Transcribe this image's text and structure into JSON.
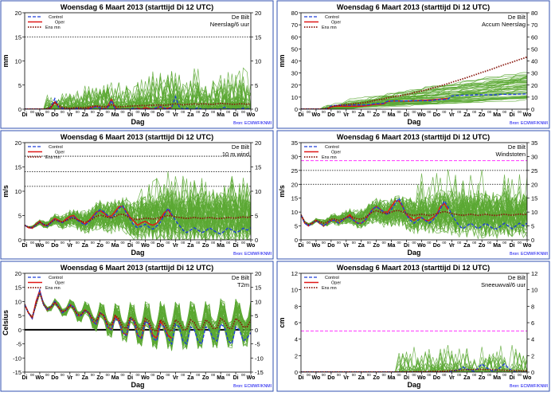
{
  "panels": [
    {
      "id": "precip6h",
      "header": "Woensdag  6 Maart   2013  (starttijd  Di 12 UTC)",
      "location": "De Bilt",
      "subtitle": "Neerslag/6 uur",
      "ylabel": "mm",
      "xlabel": "Dag",
      "ylim": [
        0,
        20
      ],
      "yticks": [
        0,
        5,
        10,
        15,
        20
      ],
      "dotted_lines": [
        15
      ],
      "magenta_lines": [],
      "zero_line": false,
      "legend": [
        "Control",
        "Oper",
        "Ens mn"
      ],
      "source": "Bron: ECMWF/KNMI",
      "day_labels": [
        "Di",
        "Wo",
        "Do",
        "Vr",
        "Za",
        "Zo",
        "Ma",
        "Di",
        "Wo",
        "Do",
        "Vr",
        "Za",
        "Zo",
        "Ma",
        "Di",
        "Wo"
      ],
      "extra_tick_labels": [
        "00",
        "00",
        "00",
        "00",
        "00",
        "00",
        "00",
        "00",
        "00",
        "00",
        "00",
        "00",
        "00",
        "00",
        "00"
      ],
      "profile": "spiky",
      "control": [
        0,
        0,
        0,
        0,
        0,
        0,
        0,
        0.5,
        2.2,
        0.4,
        0.2,
        0,
        0,
        0,
        0.2,
        0,
        0,
        0,
        0.3,
        0.5,
        0.3,
        0,
        0.3,
        1.8,
        0.1,
        0,
        0,
        0,
        0,
        0.2,
        0,
        0,
        0,
        0,
        0,
        0.3,
        0.5,
        0.2,
        0,
        0.3,
        2.6,
        0.5,
        0,
        0.2,
        0,
        0,
        0.3,
        0,
        0,
        0,
        0,
        0,
        0,
        0.4,
        0,
        0,
        0,
        0,
        0.2,
        0,
        0.3
      ],
      "oper": [
        0,
        0,
        0,
        0,
        0,
        0,
        0,
        0.3,
        1.5,
        0.5,
        0.1,
        0,
        0,
        0,
        0.1,
        0,
        0,
        0.2,
        0.4,
        0.6,
        0.3,
        0,
        0.5,
        2.0,
        0.3,
        0,
        0,
        0,
        0,
        0,
        0.2,
        0,
        0.3,
        0.1,
        0,
        0.2,
        0.6,
        0.1,
        0.2,
        0.4
      ],
      "ensmean": [
        0,
        0,
        0,
        0,
        0,
        0,
        0.1,
        0.5,
        1.4,
        0.8,
        0.4,
        0.3,
        0.2,
        0.3,
        0.4,
        0.3,
        0.3,
        0.5,
        0.6,
        0.7,
        0.6,
        0.5,
        0.6,
        0.9,
        0.6,
        0.5,
        0.5,
        0.6,
        0.6,
        0.7,
        0.7,
        0.8,
        0.7,
        0.8,
        0.8,
        0.9,
        0.9,
        0.8,
        0.9,
        1.0,
        1.1,
        1.0,
        0.9,
        1.0,
        1.0,
        1.1,
        1.0,
        1.1,
        1.1,
        1.0,
        1.0,
        1.1,
        1.2,
        1.1,
        1.1,
        1.0,
        1.0,
        1.1,
        1.1,
        1.0,
        1.1
      ]
    },
    {
      "id": "precipaccum",
      "header": "Woensdag  6 Maart   2013  (starttijd  Di 12 UTC)",
      "location": "De Bilt",
      "subtitle": "Accum Neerslag",
      "ylabel": "mm",
      "xlabel": "Dag",
      "ylim": [
        0,
        80
      ],
      "yticks": [
        0,
        10,
        20,
        30,
        40,
        50,
        60,
        70,
        80
      ],
      "dotted_lines": [],
      "magenta_lines": [],
      "zero_line": false,
      "legend": [
        "Control",
        "Oper",
        "Ens mn"
      ],
      "source": "Bron: ECMWF/KNMI",
      "day_labels": [
        "Di",
        "Wo",
        "Do",
        "Vr",
        "Za",
        "Zo",
        "Ma",
        "Di",
        "Wo",
        "Do",
        "Vr",
        "Za",
        "Zo",
        "Ma",
        "Di",
        "Wo"
      ],
      "extra_tick_labels": [
        "00",
        "00",
        "00",
        "00",
        "00",
        "00",
        "00",
        "00",
        "00",
        "00",
        "00",
        "00",
        "00",
        "00",
        "00"
      ],
      "profile": "accum",
      "control": [
        0,
        0,
        0,
        0,
        0,
        0,
        0,
        0.5,
        2.7,
        3.1,
        3.3,
        3.3,
        3.3,
        3.3,
        3.5,
        3.5,
        3.5,
        3.5,
        3.8,
        4.3,
        4.6,
        4.6,
        4.9,
        6.7,
        6.8,
        6.8,
        6.8,
        6.8,
        6.8,
        7.0,
        7.0,
        7.0,
        7.0,
        7.0,
        7.0,
        7.3,
        7.8,
        8.0,
        8.0,
        8.3,
        10.9,
        11.4,
        11.4,
        11.6,
        11.6,
        11.6,
        11.9,
        11.9,
        11.9,
        11.9,
        11.9,
        11.9,
        11.9,
        12.3,
        12.3,
        12.3,
        12.3,
        12.3,
        12.5,
        12.5,
        12.8
      ],
      "oper": [
        0,
        0,
        0,
        0,
        0,
        0,
        0,
        0.3,
        1.8,
        2.3,
        2.4,
        2.4,
        2.4,
        2.4,
        2.5,
        2.5,
        2.5,
        2.7,
        3.1,
        3.7,
        4.0,
        4.0,
        4.5,
        6.5,
        6.8,
        6.8,
        6.8,
        6.8,
        6.8,
        6.8,
        7.0,
        7.0,
        7.3,
        7.4,
        7.4,
        7.6,
        8.2,
        8.3,
        8.5,
        8.9
      ],
      "ensmean": [
        0,
        0,
        0,
        0,
        0,
        0,
        0.1,
        0.6,
        2.0,
        2.8,
        3.2,
        3.5,
        3.7,
        4.0,
        4.4,
        4.7,
        5.0,
        5.5,
        6.1,
        6.8,
        7.4,
        7.9,
        8.5,
        9.4,
        10.0,
        10.5,
        11.0,
        11.6,
        12.2,
        12.9,
        13.6,
        14.4,
        15.1,
        15.9,
        16.7,
        17.6,
        18.5,
        19.3,
        20.2,
        21.2,
        22.3,
        23.3,
        24.2,
        25.2,
        26.2,
        27.3,
        28.3,
        29.4,
        30.5,
        31.5,
        32.5,
        33.6,
        34.8,
        35.9,
        37.0,
        38.0,
        39.0,
        40.1,
        41.2,
        42.2,
        43.3
      ]
    },
    {
      "id": "wind10m",
      "header": "Woensdag  6 Maart   2013  (starttijd  Di 12 UTC)",
      "location": "De Bilt",
      "subtitle": "10 m wind",
      "ylabel": "m/s",
      "xlabel": "Dag",
      "ylim": [
        0,
        20
      ],
      "yticks": [
        0,
        5,
        10,
        15,
        20
      ],
      "dotted_lines": [
        11,
        14,
        17.2
      ],
      "magenta_lines": [],
      "zero_line": false,
      "legend": [
        "Control",
        "Oper",
        "Ens mn"
      ],
      "source": "Bron: ECMWF/KNMI",
      "day_labels": [
        "Di",
        "Wo",
        "Do",
        "Vr",
        "Za",
        "Zo",
        "Ma",
        "Di",
        "Wo",
        "Do",
        "Vr",
        "Za",
        "Zo",
        "Ma",
        "Di",
        "Wo"
      ],
      "extra_tick_labels": [
        "00",
        "00",
        "00",
        "00",
        "00",
        "00",
        "00",
        "00",
        "00",
        "00",
        "00",
        "00",
        "00",
        "00",
        "00"
      ],
      "profile": "wind",
      "control": [
        3.0,
        2.6,
        2.5,
        3.0,
        3.6,
        3.2,
        2.8,
        3.5,
        4.2,
        3.8,
        3.5,
        4.0,
        4.5,
        4.8,
        4.0,
        3.5,
        3.0,
        3.6,
        4.5,
        5.5,
        6.2,
        5.8,
        5.0,
        4.5,
        5.3,
        6.5,
        7.0,
        5.5,
        4.2,
        3.0,
        2.5,
        2.8,
        3.2,
        2.6,
        2.2,
        2.8,
        3.6,
        5.0,
        6.5,
        5.3,
        4.0,
        3.0,
        2.0,
        1.5,
        2.0,
        2.5,
        2.0,
        1.5,
        1.8,
        2.5,
        2.0,
        1.5,
        1.2,
        1.8,
        2.5,
        2.0,
        1.5,
        1.8,
        2.4,
        2.0,
        2.5
      ],
      "oper": [
        3.0,
        2.5,
        2.4,
        3.2,
        3.8,
        3.0,
        2.9,
        3.7,
        4.4,
        4.0,
        3.6,
        4.3,
        4.8,
        5.0,
        4.2,
        3.8,
        3.3,
        3.9,
        4.8,
        5.7,
        6.0,
        5.5,
        4.8,
        4.9,
        5.8,
        6.8,
        6.9,
        5.8,
        4.6,
        3.8,
        3.0,
        3.5,
        3.8,
        3.3,
        3.0,
        3.4,
        4.3,
        5.5,
        6.2,
        5.0
      ],
      "ensmean": [
        3.0,
        2.6,
        2.6,
        3.1,
        3.6,
        3.2,
        3.0,
        3.6,
        4.1,
        3.9,
        3.6,
        4.0,
        4.3,
        4.5,
        4.1,
        3.8,
        3.6,
        3.9,
        4.3,
        4.8,
        5.1,
        4.9,
        4.6,
        4.5,
        4.8,
        5.2,
        5.3,
        4.9,
        4.5,
        4.3,
        4.2,
        4.3,
        4.5,
        4.4,
        4.3,
        4.4,
        4.6,
        4.8,
        5.0,
        4.9,
        4.7,
        4.6,
        4.5,
        4.4,
        4.5,
        4.6,
        4.5,
        4.4,
        4.5,
        4.6,
        4.5,
        4.4,
        4.4,
        4.5,
        4.6,
        4.5,
        4.5,
        4.6,
        4.7,
        4.6,
        4.7
      ]
    },
    {
      "id": "gusts",
      "header": "Woensdag  6 Maart   2013  (starttijd  Di 12 UTC)",
      "location": "De Bilt",
      "subtitle": "Windstoten",
      "ylabel": "m/s",
      "xlabel": "Dag",
      "ylim": [
        0,
        35
      ],
      "yticks": [
        0,
        5,
        10,
        15,
        20,
        25,
        30,
        35
      ],
      "dotted_lines": [
        20,
        25
      ],
      "magenta_lines": [
        28.5
      ],
      "zero_line": false,
      "legend": [
        "Control",
        "Oper",
        "Ens mn"
      ],
      "source": "Bron: ECMWF/KNMI",
      "day_labels": [
        "Di",
        "Wo",
        "Do",
        "Vr",
        "Za",
        "Zo",
        "Ma",
        "Di",
        "Wo",
        "Do",
        "Vr",
        "Za",
        "Zo",
        "Ma",
        "Di",
        "Wo"
      ],
      "extra_tick_labels": [
        "00",
        "00",
        "00",
        "00",
        "00",
        "00",
        "00",
        "00",
        "00",
        "00",
        "00",
        "00",
        "00",
        "00",
        "00"
      ],
      "profile": "gust",
      "control": [
        9,
        6,
        5,
        6,
        7,
        6,
        5,
        6,
        7,
        7,
        6,
        7,
        8,
        8,
        7,
        6,
        6,
        7,
        9,
        11,
        12,
        11,
        10,
        9,
        11,
        13,
        15,
        12,
        9,
        7,
        6,
        7,
        8,
        7,
        6,
        7,
        9,
        11,
        14,
        12,
        9,
        7,
        5,
        4,
        5,
        6,
        5,
        4,
        5,
        6,
        5,
        4,
        4,
        5,
        6,
        5,
        4,
        5,
        6,
        5,
        6
      ],
      "oper": [
        9,
        6,
        5,
        6,
        7,
        6,
        5,
        6,
        7,
        7,
        6,
        7,
        8,
        9,
        7,
        6,
        6,
        7,
        9,
        11,
        12,
        11,
        10,
        10,
        12,
        14,
        14,
        12,
        9,
        8,
        7,
        8,
        8,
        7,
        7,
        8,
        9,
        12,
        13,
        11
      ],
      "ensmean": [
        9,
        6.5,
        5.5,
        6,
        7,
        6.5,
        6,
        6.5,
        7.5,
        7.5,
        7,
        7.5,
        8,
        8.5,
        8,
        7.5,
        7.5,
        8,
        9,
        10,
        10.5,
        10,
        9.5,
        9.5,
        10,
        10.5,
        10.5,
        10,
        9.5,
        9,
        8.8,
        9,
        9.2,
        9,
        8.8,
        9,
        9.4,
        9.8,
        10.2,
        9.9,
        9.5,
        9.2,
        9,
        8.8,
        9,
        9.2,
        9,
        8.8,
        9,
        9.2,
        9,
        8.8,
        8.8,
        9,
        9.2,
        9,
        8.9,
        9.1,
        9.3,
        9.1,
        9.2
      ]
    },
    {
      "id": "t2m",
      "header": "Woensdag  6 Maart   2013  (starttijd  Di 12 UTC)",
      "location": "De Bilt",
      "subtitle": "T2m",
      "ylabel": "Celsius",
      "xlabel": "Dag",
      "ylim": [
        -15,
        20
      ],
      "yticks": [
        -15,
        -10,
        -5,
        0,
        5,
        10,
        15,
        20
      ],
      "dotted_lines": [],
      "magenta_lines": [],
      "zero_line": true,
      "legend": [
        "Control",
        "Oper",
        "Ens mn"
      ],
      "source": "Bron: ECMWF/KNMI",
      "day_labels": [
        "Di",
        "Wo",
        "Do",
        "Vr",
        "Za",
        "Zo",
        "Ma",
        "Di",
        "Wo",
        "Do",
        "Vr",
        "Za",
        "Zo",
        "Ma",
        "Di",
        "Wo"
      ],
      "extra_tick_labels": [
        "00",
        "00",
        "00",
        "00",
        "00",
        "00",
        "00",
        "00",
        "00",
        "00",
        "00",
        "00",
        "00",
        "00",
        "00"
      ],
      "profile": "temp",
      "control": [
        9,
        6,
        4,
        9,
        14,
        9,
        7,
        8,
        10,
        8,
        6,
        7,
        9,
        8,
        5,
        5,
        7,
        6,
        3,
        2,
        6,
        5,
        1,
        0,
        4,
        3,
        -1,
        -2,
        4,
        3,
        -2,
        -3,
        3,
        2,
        -3,
        -4,
        2,
        1,
        -3,
        -5,
        2,
        1,
        -4,
        -5,
        1,
        0,
        -4,
        -5,
        1,
        0,
        -3,
        -4,
        2,
        1,
        -4,
        -5,
        1,
        0,
        -4,
        -3,
        -1
      ],
      "oper": [
        9,
        6,
        4,
        10,
        14,
        9,
        7,
        8,
        10,
        8,
        6,
        7,
        9,
        8,
        5,
        5,
        7,
        6,
        3,
        2,
        6,
        5,
        1,
        0,
        5,
        3,
        -1,
        -2,
        4,
        3,
        -2,
        -3,
        3,
        2,
        -2,
        -3,
        3,
        1,
        -2,
        -3
      ],
      "ensmean": [
        9,
        6,
        4.5,
        9,
        13,
        9,
        7.5,
        8,
        9.5,
        8,
        6.5,
        7,
        8.5,
        7.5,
        5.5,
        5.5,
        7,
        6,
        4,
        3,
        6,
        5,
        2,
        1.5,
        5,
        4,
        1,
        0.5,
        4.5,
        3.5,
        0.5,
        0,
        4,
        3,
        0,
        -0.5,
        3.5,
        2.5,
        0,
        -0.5,
        3.5,
        2.5,
        0,
        0,
        3.5,
        2.5,
        0,
        0,
        3.5,
        2.5,
        0.5,
        0.5,
        4,
        3,
        0.5,
        0.5,
        4,
        3,
        1,
        1,
        3.5
      ]
    },
    {
      "id": "snow",
      "header": "Woensdag  6 Maart   2013  (starttijd  Di 12 UTC)",
      "location": "De Bilt",
      "subtitle": "Sneeuwval/6 uur",
      "ylabel": "cm",
      "xlabel": "Dag",
      "ylim": [
        0,
        12
      ],
      "yticks": [
        0,
        2,
        4,
        6,
        8,
        10,
        12
      ],
      "dotted_lines": [],
      "magenta_lines": [
        5
      ],
      "zero_line": false,
      "legend": [
        "Control",
        "Oper",
        "Ens mn"
      ],
      "source": "Bron: ECMWF/KNMI",
      "day_labels": [
        "Di",
        "Wo",
        "Do",
        "Vr",
        "Za",
        "Zo",
        "Ma",
        "Di",
        "Wo",
        "Do",
        "Vr",
        "Za",
        "Zo",
        "Ma",
        "Di",
        "Wo"
      ],
      "extra_tick_labels": [
        "00",
        "00",
        "00",
        "00",
        "00",
        "00",
        "00",
        "00",
        "00",
        "00",
        "00",
        "00",
        "00",
        "00",
        "00"
      ],
      "profile": "snow",
      "control": [
        0,
        0,
        0,
        0,
        0,
        0,
        0,
        0,
        0,
        0,
        0,
        0,
        0,
        0,
        0,
        0,
        0,
        0,
        0,
        0,
        0,
        0,
        0,
        0,
        0,
        0,
        0,
        0,
        0,
        0,
        0,
        0,
        0,
        0,
        0,
        0,
        0,
        0,
        0,
        0,
        0.1,
        0.2,
        0.3,
        0.6,
        0.4,
        0.2,
        0.1,
        0.5,
        1.0,
        0.6,
        0.3,
        0.1,
        0.3,
        0.6,
        1.0,
        0.5,
        0.2,
        0,
        0,
        0,
        0
      ],
      "oper": [
        0,
        0,
        0,
        0,
        0,
        0,
        0,
        0,
        0,
        0,
        0,
        0,
        0,
        0,
        0,
        0,
        0,
        0,
        0,
        0,
        0,
        0,
        0,
        0,
        0,
        0,
        0,
        0,
        0,
        0,
        0,
        0,
        0,
        0,
        0,
        0,
        0,
        0,
        0,
        0
      ],
      "ensmean": [
        0,
        0,
        0,
        0,
        0,
        0,
        0,
        0,
        0,
        0,
        0,
        0,
        0,
        0,
        0,
        0,
        0,
        0,
        0,
        0,
        0,
        0,
        0,
        0,
        0,
        0,
        0,
        0,
        0.02,
        0.02,
        0.03,
        0.04,
        0.05,
        0.05,
        0.06,
        0.08,
        0.1,
        0.1,
        0.12,
        0.15,
        0.18,
        0.2,
        0.22,
        0.25,
        0.28,
        0.3,
        0.3,
        0.32,
        0.33,
        0.3,
        0.3,
        0.28,
        0.26,
        0.25,
        0.22,
        0.2,
        0.2,
        0.18,
        0.17,
        0.15,
        0.15
      ]
    }
  ],
  "colors": {
    "control": "#1f3fd8",
    "oper": "#e01818",
    "ensmean": "#8a1a10",
    "members": "#5aa832",
    "magenta": "#ff33ff",
    "source": "#0000ee",
    "border": "#3050b0"
  }
}
